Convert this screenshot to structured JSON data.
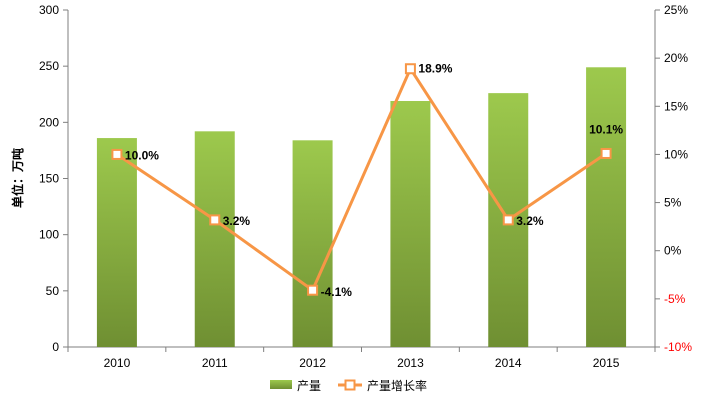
{
  "chart_data": {
    "type": "bar+line",
    "categories": [
      "2010",
      "2011",
      "2012",
      "2013",
      "2014",
      "2015"
    ],
    "series": [
      {
        "name": "产量",
        "type": "bar",
        "axis": "left",
        "values": [
          186,
          192,
          184,
          219,
          226,
          249
        ]
      },
      {
        "name": "产量增长率",
        "type": "line",
        "axis": "right",
        "unit": "%",
        "values": [
          10.0,
          3.2,
          -4.1,
          18.9,
          3.2,
          10.1
        ]
      }
    ],
    "data_labels": [
      "10.0%",
      "3.2%",
      "-4.1%",
      "18.9%",
      "3.2%",
      "10.1%"
    ],
    "ylabel": "单位：万吨",
    "ylim_left": [
      0,
      300
    ],
    "yticks_left": [
      "0",
      "50",
      "100",
      "150",
      "200",
      "250",
      "300"
    ],
    "ylim_right": [
      -10,
      25
    ],
    "yticks_right": [
      "-10%",
      "-5%",
      "0%",
      "5%",
      "10%",
      "15%",
      "20%",
      "25%"
    ],
    "grid": false,
    "legend_position": "bottom",
    "colors": {
      "bar_top": "#9dc94d",
      "bar_bottom": "#6f8f32",
      "line": "#f79646",
      "marker_fill": "#ffffff",
      "negative_tick": "#ff0000",
      "axis": "#7f7f7f"
    }
  }
}
